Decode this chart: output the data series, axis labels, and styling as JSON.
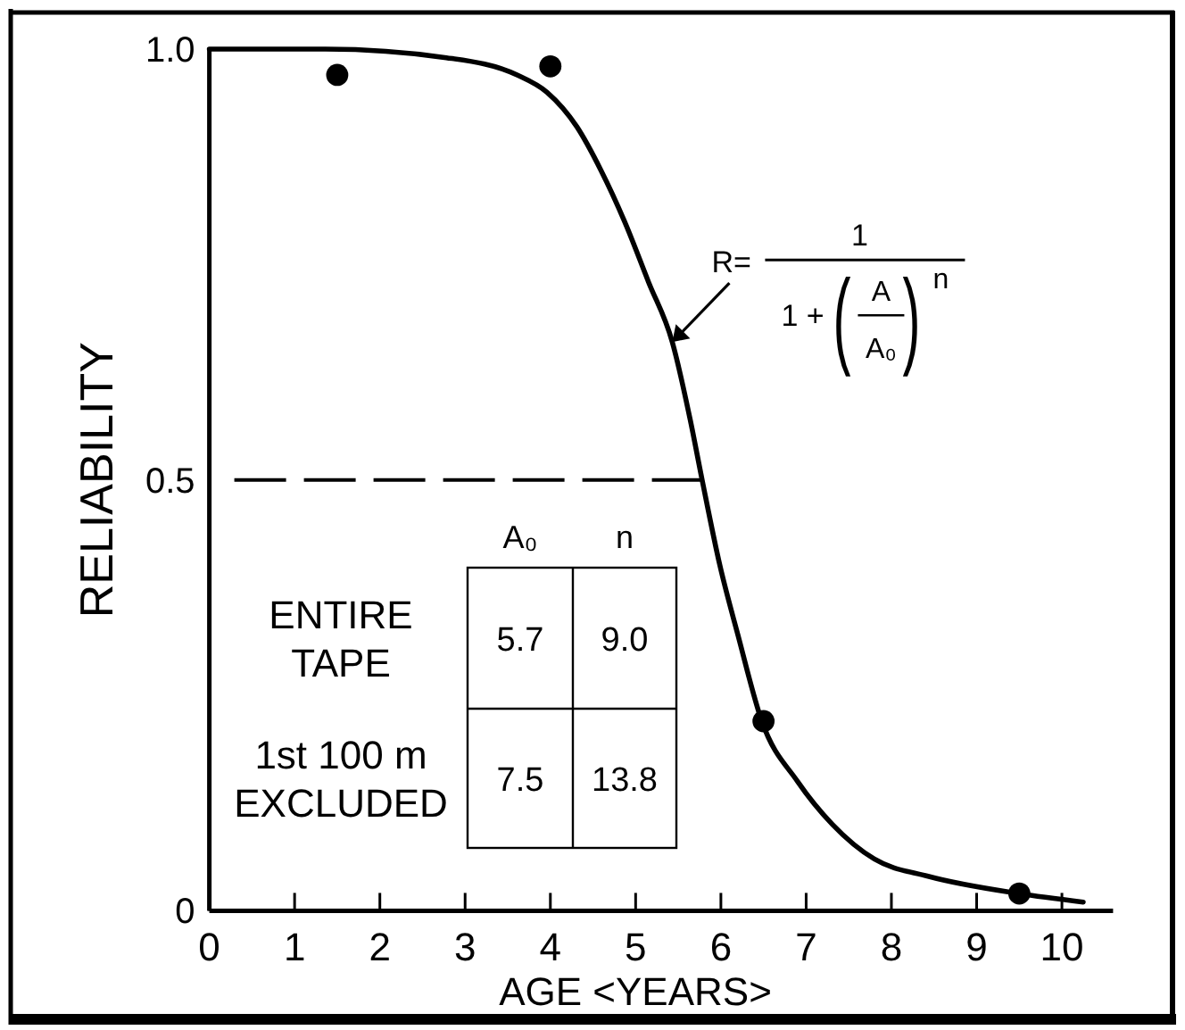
{
  "chart_data": {
    "type": "scatter",
    "xlabel": "AGE <YEARS>",
    "ylabel": "RELIABILITY",
    "xlim": [
      0,
      10.6
    ],
    "xticks": [
      0,
      1,
      2,
      3,
      4,
      5,
      6,
      7,
      8,
      9,
      10
    ],
    "ylim": [
      0,
      1
    ],
    "yticks": [
      0,
      0.5,
      {
        "value": 1,
        "label": "1.0"
      }
    ],
    "series": [
      {
        "type": "line",
        "color": "#000000",
        "x": [
          0,
          1.36,
          2.78,
          3.61,
          3.96,
          4.31,
          4.59,
          4.87,
          5.15,
          5.43,
          5.64,
          5.78,
          5.99,
          6.2,
          6.48,
          6.9,
          7.31,
          7.8,
          8.43,
          9.49,
          10.25
        ],
        "values": [
          1,
          1,
          0.99,
          0.97,
          0.95,
          0.91,
          0.86,
          0.8,
          0.73,
          0.66,
          0.57,
          0.5,
          0.4,
          0.32,
          0.22,
          0.15,
          0.1,
          0.06,
          0.04,
          0.02,
          0.01
        ]
      },
      {
        "type": "scatter",
        "color": "#000000",
        "marker": "circle",
        "x": [
          1.5,
          4,
          6.5,
          9.5
        ],
        "values": [
          0.97,
          0.98,
          0.22,
          0.02
        ]
      }
    ],
    "ref_lines": [
      {
        "axis": "y",
        "value": 0.5,
        "color": "#000000",
        "line_style": "dashed"
      }
    ],
    "annotations": [
      {
        "text": "R=",
        "x": 5.43,
        "y": 0.66
      },
      "1",
      "1 +",
      "(",
      "A",
      "A₀",
      ")",
      "n",
      "A₀",
      "n",
      "ENTIRE TAPE",
      "5.7",
      "9.0",
      "1st 100 m EXCLUDED",
      "7.5",
      "13.8"
    ]
  }
}
